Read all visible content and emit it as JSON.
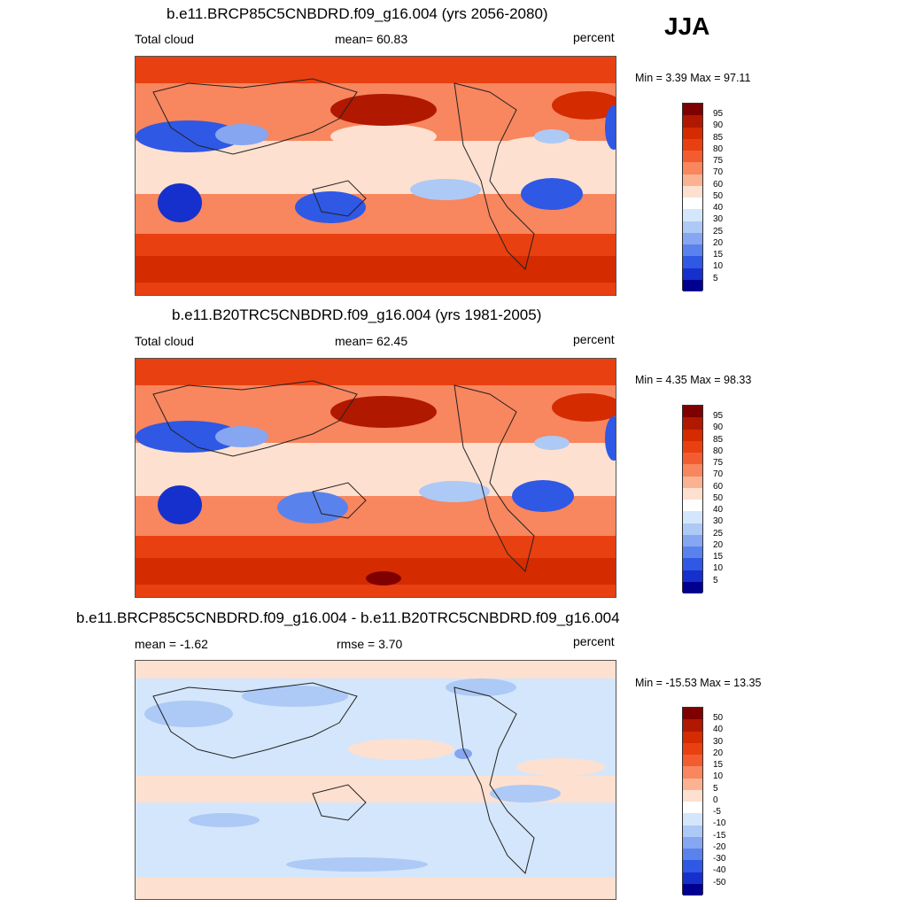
{
  "season": "JJA",
  "panels": [
    {
      "title": "b.e11.BRCP85C5CNBDRD.f09_g16.004 (yrs 2056-2080)",
      "left_label": "Total cloud",
      "center_label": "mean=  60.83",
      "right_label": "percent",
      "minmax": "Min =   3.39 Max =  97.11",
      "colorbar": [
        "95",
        "90",
        "85",
        "80",
        "75",
        "70",
        "60",
        "50",
        "40",
        "30",
        "25",
        "20",
        "15",
        "10",
        "5"
      ]
    },
    {
      "title": "b.e11.B20TRC5CNBDRD.f09_g16.004 (yrs 1981-2005)",
      "left_label": "Total cloud",
      "center_label": "mean=  62.45",
      "right_label": "percent",
      "minmax": "Min =   4.35 Max =  98.33",
      "colorbar": [
        "95",
        "90",
        "85",
        "80",
        "75",
        "70",
        "60",
        "50",
        "40",
        "30",
        "25",
        "20",
        "15",
        "10",
        "5"
      ]
    },
    {
      "title": "b.e11.BRCP85C5CNBDRD.f09_g16.004 - b.e11.B20TRC5CNBDRD.f09_g16.004",
      "left_label": "mean =  -1.62",
      "center_label": "rmse =   3.70",
      "right_label": "percent",
      "minmax": "Min = -15.53 Max =  13.35",
      "colorbar": [
        "50",
        "40",
        "30",
        "20",
        "15",
        "10",
        "5",
        "0",
        "-5",
        "-10",
        "-15",
        "-20",
        "-30",
        "-40",
        "-50"
      ]
    }
  ],
  "colors": {
    "palette": [
      "#7f0000",
      "#b01800",
      "#d42b00",
      "#e84010",
      "#f25c30",
      "#f8865e",
      "#fbb293",
      "#fde0cf",
      "#ffffff",
      "#d4e6fb",
      "#adc9f6",
      "#86a6f1",
      "#5a82ec",
      "#2f58e4",
      "#1530cc",
      "#000090"
    ]
  }
}
